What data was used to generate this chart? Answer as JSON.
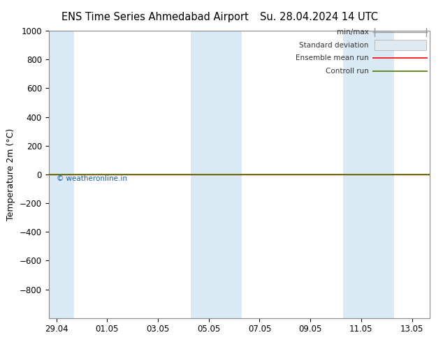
{
  "title_left": "ENS Time Series Ahmedabad Airport",
  "title_right": "Su. 28.04.2024 14 UTC",
  "ylabel": "Temperature 2m (°C)",
  "ylim_top": -1000,
  "ylim_bottom": 1000,
  "yticks": [
    -800,
    -600,
    -400,
    -200,
    0,
    200,
    400,
    600,
    800,
    1000
  ],
  "xtick_labels": [
    "29.04",
    "01.05",
    "03.05",
    "05.05",
    "07.05",
    "09.05",
    "11.05",
    "13.05"
  ],
  "xtick_positions": [
    0,
    2,
    4,
    6,
    8,
    10,
    12,
    14
  ],
  "xlim": [
    -0.3,
    14.7
  ],
  "green_line_y": 0,
  "shaded_bands": [
    {
      "x_start": -0.3,
      "x_end": 0.7
    },
    {
      "x_start": 5.3,
      "x_end": 7.3
    },
    {
      "x_start": 11.3,
      "x_end": 13.3
    }
  ],
  "shade_color": "#daeaf5",
  "background_color": "#ffffff",
  "spine_color": "#888888",
  "watermark": "© weatheronline.in",
  "watermark_color": "#1a5fa0",
  "title_fontsize": 10.5,
  "tick_fontsize": 8.5,
  "ylabel_fontsize": 9,
  "legend_fontsize": 7.5
}
